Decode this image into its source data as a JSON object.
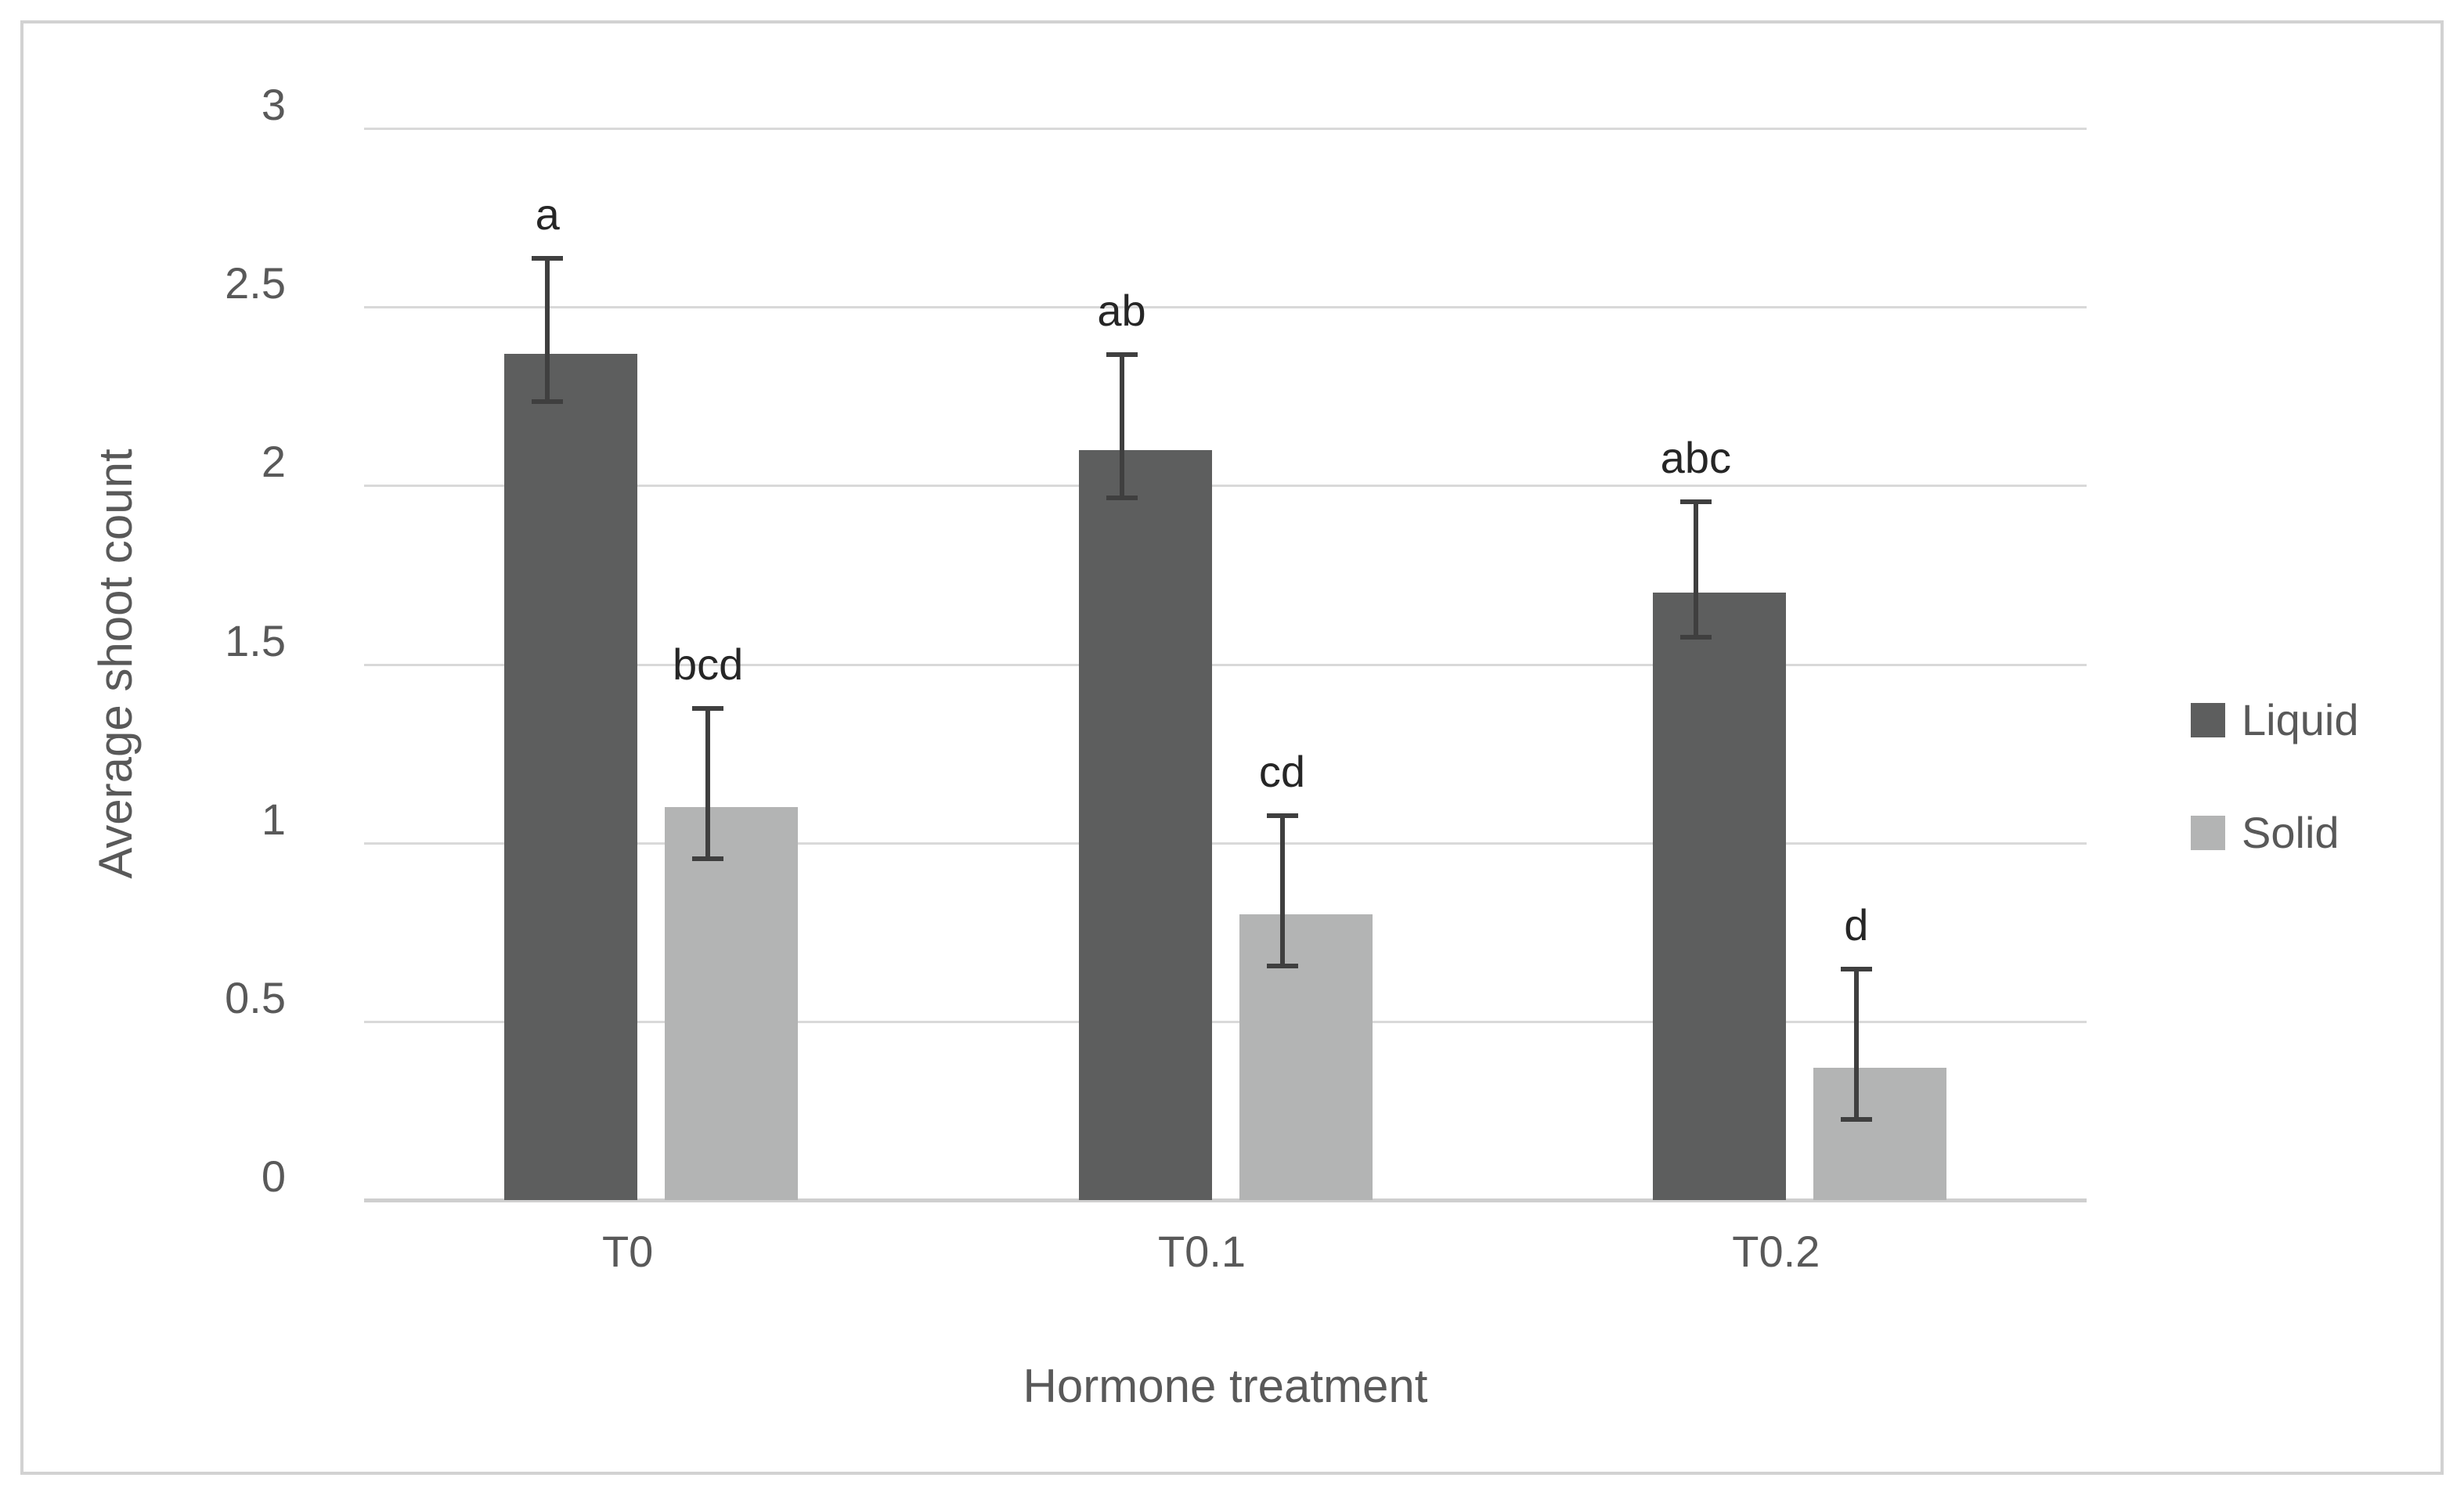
{
  "figure": {
    "background": "#ffffff",
    "frame_border_color": "#d2d2d2"
  },
  "chart_data": {
    "type": "bar",
    "title": "",
    "xlabel": "Hormone treatment",
    "ylabel": "Average shoot count",
    "categories": [
      "T0",
      "T0.1",
      "T0.2"
    ],
    "series": [
      {
        "name": "Liquid",
        "color": "#5d5e5e",
        "values": [
          2.37,
          2.1,
          1.7
        ],
        "errors": [
          0.2,
          0.2,
          0.19
        ],
        "sig_letters": [
          "a",
          "ab",
          "abc"
        ]
      },
      {
        "name": "Solid",
        "color": "#b3b4b4",
        "values": [
          1.1,
          0.8,
          0.37
        ],
        "errors": [
          0.21,
          0.21,
          0.21
        ],
        "sig_letters": [
          "bcd",
          "cd",
          "d"
        ]
      }
    ],
    "ylim": [
      0,
      3
    ],
    "ytick_labels": [
      "0",
      "0.5",
      "1",
      "1.5",
      "2",
      "2.5",
      "3"
    ],
    "ytick_step": 0.5,
    "grid": true,
    "legend_position": "right",
    "colors": {
      "text": "#595959",
      "sig_letter": "#262626",
      "gridline": "#d9d9d9",
      "axis_line": "#cfcfcf",
      "error_bar": "#3f3f3f"
    }
  }
}
